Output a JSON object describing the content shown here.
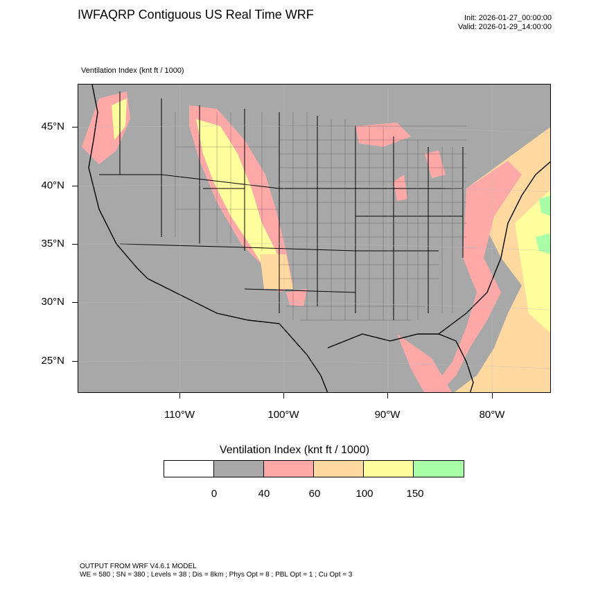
{
  "header": {
    "title": "IWFAQRP Contiguous US Real Time WRF",
    "init": "Init: 2026-01-27_00:00:00",
    "valid": "Valid: 2026-01-29_14:00:00"
  },
  "field": {
    "name": "Ventilation Index",
    "units": "(knt ft / 1000)",
    "subtitle": "Ventilation Index   (knt ft / 1000)"
  },
  "map": {
    "lat_labels": [
      "45°N",
      "40°N",
      "35°N",
      "30°N",
      "25°N"
    ],
    "lon_labels": [
      "110°W",
      "100°W",
      "90°W",
      "80°W"
    ]
  },
  "legend": {
    "title": "Ventilation Index  (knt ft / 1000)",
    "colors": [
      "#ffffff",
      "#a8a8a8",
      "#ffa8a8",
      "#ffd9a0",
      "#ffff9e",
      "#a8ffa8"
    ],
    "labels": [
      "0",
      "40",
      "60",
      "100",
      "150"
    ]
  },
  "footer": {
    "line1": "OUTPUT FROM WRF V4.6.1 MODEL",
    "line2": "WE = 580 ; SN = 380 ; Levels = 38 ; Dis = 8km ; Phys Opt = 8 ; PBL Opt = 1 ; Cu Opt = 3"
  }
}
